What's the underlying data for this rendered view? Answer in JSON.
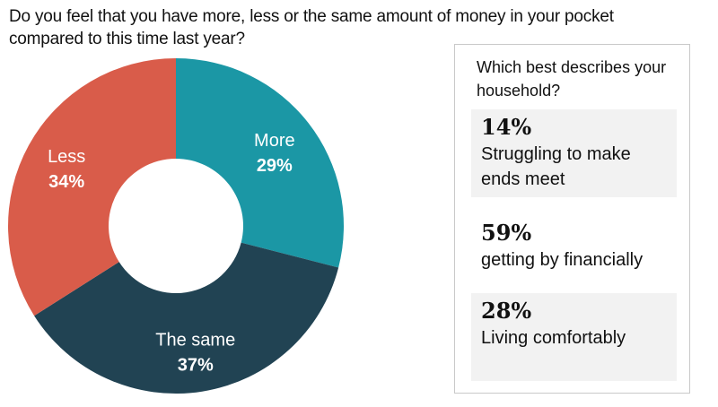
{
  "question": "Do you feel that you have more, less or the same amount of money in your pocket compared to this time last year?",
  "chart_data": {
    "type": "pie",
    "subtype": "donut",
    "title": "Do you feel that you have more, less or the same amount of money in your pocket compared to this time last year?",
    "categories": [
      "More",
      "The same",
      "Less"
    ],
    "values": [
      29,
      37,
      34
    ],
    "value_labels": [
      "29%",
      "37%",
      "34%"
    ],
    "colors": [
      "#1b97a5",
      "#214353",
      "#d95c4a"
    ]
  },
  "side_panel": {
    "title": "Which best describes your household?",
    "items": [
      {
        "pct": "14%",
        "desc": "Struggling to make ends meet",
        "shaded": true
      },
      {
        "pct": "59%",
        "desc": "getting by financially",
        "shaded": false
      },
      {
        "pct": "28%",
        "desc": "Living comfortably",
        "shaded": true
      }
    ]
  }
}
